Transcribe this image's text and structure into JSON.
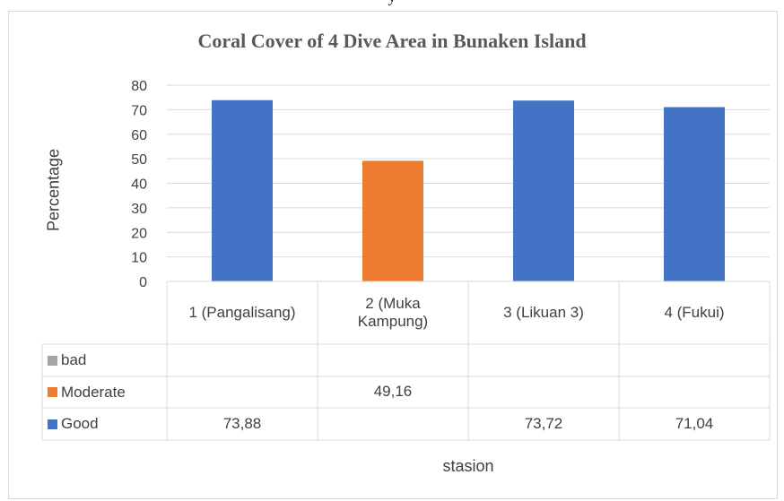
{
  "top_snip": "y",
  "chart_data": {
    "type": "bar",
    "title": "Coral Cover of 4 Dive Area in Bunaken Island",
    "ylabel": "Percentage",
    "xlabel": "stasion",
    "ylim": [
      0,
      80
    ],
    "yticks": [
      0,
      10,
      20,
      30,
      40,
      50,
      60,
      70,
      80
    ],
    "grid": true,
    "categories": [
      "1 (Pangalisang)",
      "2  (Muka Kampung)",
      "3 (Likuan 3)",
      "4 (Fukui)"
    ],
    "series": [
      {
        "name": "bad",
        "color": "#a5a5a5",
        "values": [
          null,
          null,
          null,
          null
        ],
        "labels": [
          "",
          "",
          "",
          ""
        ]
      },
      {
        "name": "Moderate",
        "color": "#ed7d31",
        "values": [
          null,
          49.16,
          null,
          null
        ],
        "labels": [
          "",
          "49,16",
          "",
          ""
        ]
      },
      {
        "name": "Good",
        "color": "#4472c4",
        "values": [
          73.88,
          null,
          73.72,
          71.04
        ],
        "labels": [
          "73,88",
          "",
          "73,72",
          "71,04"
        ]
      }
    ]
  }
}
